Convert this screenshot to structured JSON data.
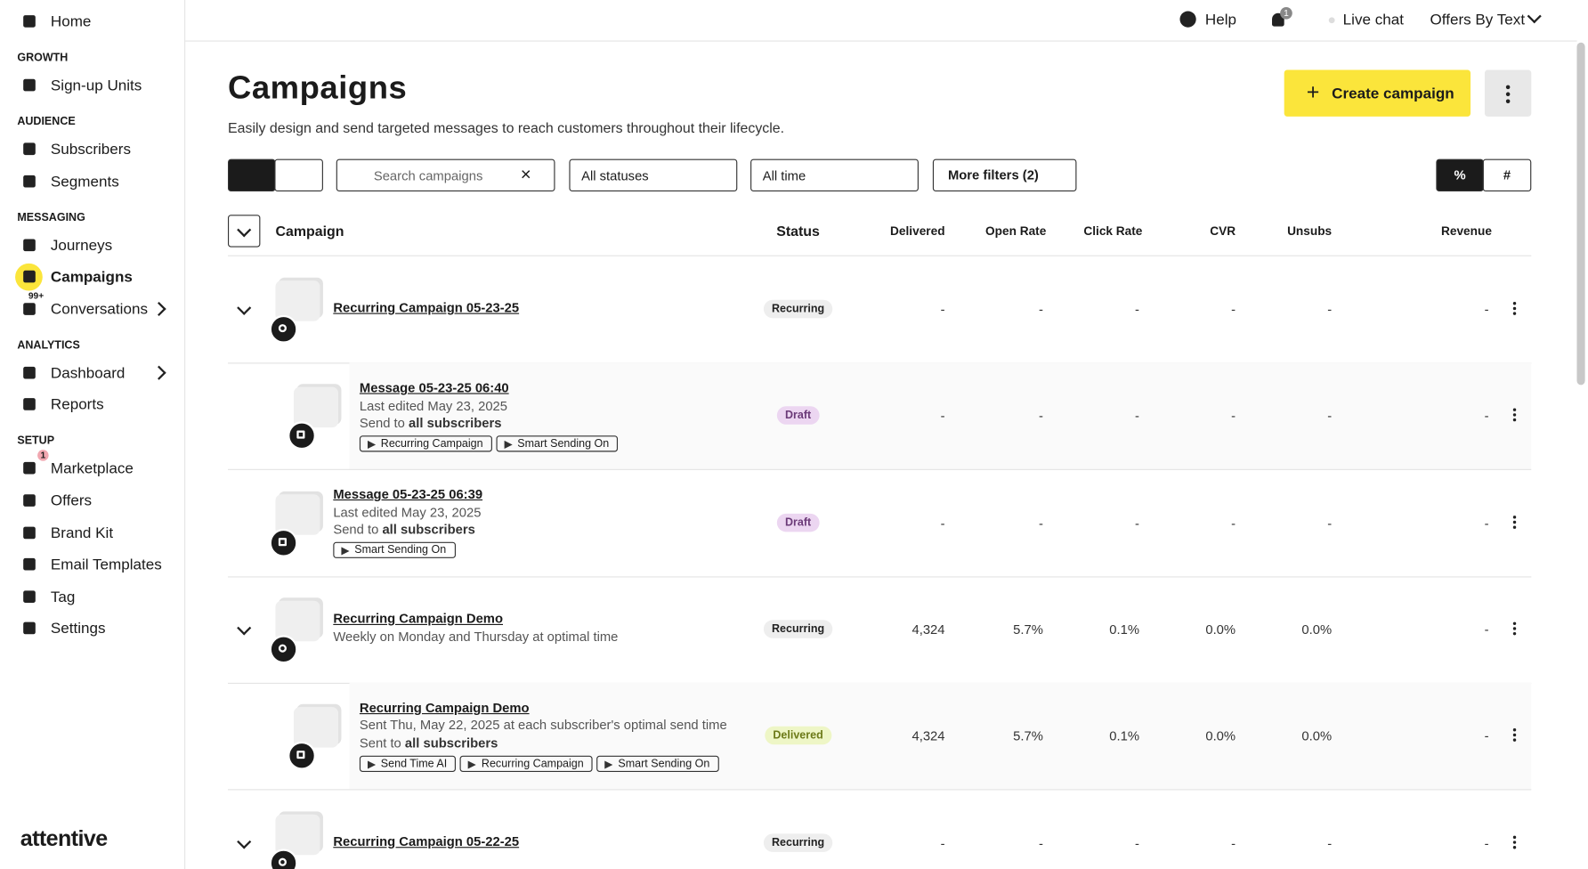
{
  "topbar": {
    "help": "Help",
    "notification_count": "1",
    "live_chat": "Live chat",
    "account": "Offers By Text"
  },
  "sidebar": {
    "home": "Home",
    "sections": [
      {
        "title": "GROWTH",
        "items": [
          {
            "label": "Sign-up Units"
          }
        ]
      },
      {
        "title": "AUDIENCE",
        "items": [
          {
            "label": "Subscribers"
          },
          {
            "label": "Segments"
          }
        ]
      },
      {
        "title": "MESSAGING",
        "items": [
          {
            "label": "Journeys"
          },
          {
            "label": "Campaigns"
          },
          {
            "label": "Conversations",
            "badge": "99+"
          }
        ]
      },
      {
        "title": "ANALYTICS",
        "items": [
          {
            "label": "Dashboard"
          },
          {
            "label": "Reports"
          }
        ]
      },
      {
        "title": "SETUP",
        "items": [
          {
            "label": "Marketplace",
            "badge": "1"
          },
          {
            "label": "Offers"
          },
          {
            "label": "Brand Kit"
          },
          {
            "label": "Email Templates"
          },
          {
            "label": "Tag"
          },
          {
            "label": "Settings"
          }
        ]
      }
    ],
    "logo": "attentive"
  },
  "header": {
    "title": "Campaigns",
    "subtitle": "Easily design and send targeted messages to reach customers throughout their lifecycle.",
    "create_button": "Create campaign"
  },
  "toolbar": {
    "search_placeholder": "Search campaigns",
    "status_filter": "All statuses",
    "date_filter": "All time",
    "more_filters": "More filters (2)"
  },
  "table": {
    "columns": [
      "Campaign",
      "Status",
      "Delivered",
      "Open Rate",
      "Click Rate",
      "CVR",
      "Unsubs",
      "Revenue"
    ],
    "rows": [
      {
        "title": "Recurring Campaign 05-23-25",
        "status": "Recurring",
        "cells": [
          "-",
          "-",
          "-",
          "-",
          "-",
          "-"
        ],
        "children": [
          {
            "title": "Message 05-23-25 06:40",
            "lines": [
              {
                "text": "Last edited May 23, 2025"
              },
              {
                "text": "Send to",
                "bold": "all subscribers"
              }
            ],
            "tags": [
              "Recurring Campaign",
              "Smart Sending On"
            ],
            "status": "Draft",
            "cells": [
              "-",
              "-",
              "-",
              "-",
              "-",
              "-"
            ]
          }
        ]
      },
      {
        "title": "Message 05-23-25 06:39",
        "lines": [
          {
            "text": "Last edited May 23, 2025"
          },
          {
            "text": "Send to",
            "bold": "all subscribers"
          }
        ],
        "tags": [
          "Smart Sending On"
        ],
        "status": "Draft",
        "cells": [
          "-",
          "-",
          "-",
          "-",
          "-",
          "-"
        ]
      },
      {
        "title": "Recurring Campaign Demo",
        "lines": [
          {
            "text": "Weekly on Monday and Thursday at optimal time"
          }
        ],
        "status": "Recurring",
        "cells": [
          "4,324",
          "5.7%",
          "0.1%",
          "0.0%",
          "0.0%",
          "-"
        ],
        "children": [
          {
            "title": "Recurring Campaign Demo",
            "lines": [
              {
                "text": "Sent Thu, May 22, 2025 at each subscriber's optimal send time"
              },
              {
                "text": "Sent to",
                "bold": "all subscribers"
              }
            ],
            "tags": [
              "Send Time AI",
              "Recurring Campaign",
              "Smart Sending On"
            ],
            "status": "Delivered",
            "cells": [
              "4,324",
              "5.7%",
              "0.1%",
              "0.0%",
              "0.0%",
              "-"
            ]
          }
        ]
      },
      {
        "title": "Recurring Campaign 05-22-25",
        "status": "Recurring",
        "cells": [
          "-",
          "-",
          "-",
          "-",
          "-",
          "-"
        ]
      }
    ]
  }
}
